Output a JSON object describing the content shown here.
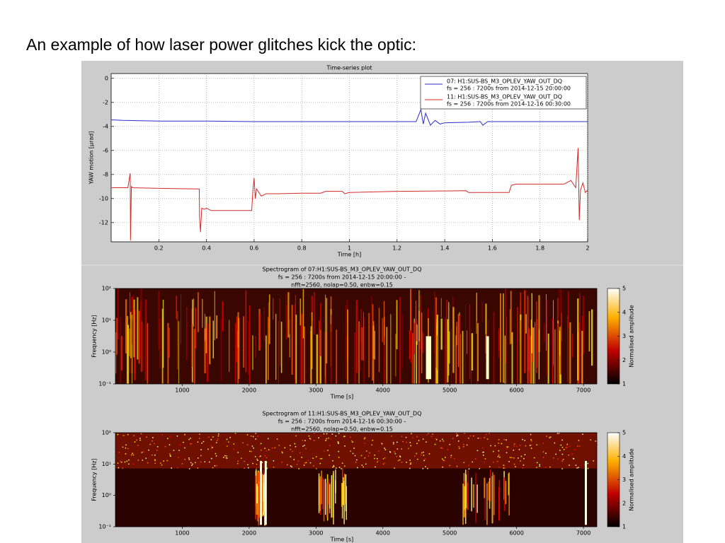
{
  "slide_title": "An example of how laser power glitches kick the optic:",
  "chart_data": [
    {
      "type": "line",
      "title": "Time-series plot",
      "xlabel": "Time [h]",
      "ylabel": "YAW motion [µrad]",
      "xlim": [
        0,
        2
      ],
      "xticks": [
        0.2,
        0.4,
        0.6,
        0.8,
        1,
        1.2,
        1.4,
        1.6,
        1.8,
        2
      ],
      "ylim": [
        -13.6,
        0.4
      ],
      "yticks": [
        0,
        -2,
        -4,
        -6,
        -8,
        -10,
        -12
      ],
      "grid": true,
      "legend": "upper right",
      "series": [
        {
          "name": "07: H1:SUS-BS_M3_OPLEV_YAW_OUT_DQ",
          "legend_note": "fs = 256 : 7200s from 2014-12-15 20:00:00",
          "color": "#2b2bc8",
          "x": [
            0,
            0.05,
            0.2,
            0.4,
            0.6,
            0.8,
            1.0,
            1.2,
            1.28,
            1.3,
            1.31,
            1.32,
            1.34,
            1.36,
            1.38,
            1.4,
            1.5,
            1.55,
            1.56,
            1.58,
            1.6,
            1.8,
            2.0
          ],
          "values": [
            -3.45,
            -3.5,
            -3.55,
            -3.55,
            -3.6,
            -3.6,
            -3.6,
            -3.6,
            -3.6,
            -2.6,
            -3.8,
            -2.9,
            -3.9,
            -3.5,
            -3.8,
            -3.7,
            -3.65,
            -3.6,
            -3.9,
            -3.6,
            -3.6,
            -3.6,
            -3.6
          ]
        },
        {
          "name": "11: H1:SUS-BS_M3_OPLEV_YAW_OUT_DQ",
          "legend_note": "fs = 256 : 7200s from 2014-12-16 00:30:00",
          "color": "#d42a2a",
          "x": [
            0,
            0.07,
            0.08,
            0.081,
            0.085,
            0.09,
            0.2,
            0.37,
            0.371,
            0.375,
            0.38,
            0.39,
            0.4,
            0.42,
            0.5,
            0.59,
            0.595,
            0.6,
            0.605,
            0.61,
            0.63,
            0.65,
            0.7,
            0.8,
            0.88,
            0.9,
            0.97,
            0.98,
            1.0,
            1.2,
            1.49,
            1.5,
            1.67,
            1.68,
            1.7,
            1.78,
            1.9,
            1.93,
            1.95,
            1.96,
            1.965,
            1.97,
            1.98,
            1.99,
            2.0
          ],
          "values": [
            -9.1,
            -9.1,
            -7.9,
            -13.5,
            -9.0,
            -9.1,
            -9.15,
            -9.2,
            -11.5,
            -12.8,
            -10.8,
            -10.9,
            -10.8,
            -11.0,
            -11.0,
            -11.0,
            -9.3,
            -8.3,
            -10.0,
            -9.2,
            -9.8,
            -9.6,
            -9.6,
            -9.55,
            -9.55,
            -9.4,
            -9.4,
            -9.6,
            -9.5,
            -9.4,
            -9.35,
            -9.5,
            -9.5,
            -8.9,
            -8.8,
            -8.8,
            -8.8,
            -8.5,
            -9.1,
            -5.8,
            -11.8,
            -9.3,
            -8.7,
            -9.5,
            -9.3
          ]
        }
      ]
    },
    {
      "type": "spectrogram",
      "title_lines": [
        "Spectrogram of 07:H1:SUS-BS_M3_OPLEV_YAW_OUT_DQ",
        "fs = 256 : 7200s from 2014-12-15 20:00:00 -",
        "nfft=2560, nolap=0.50, enbw=0.15"
      ],
      "xlabel": "Time [s]",
      "ylabel": "Frequency [Hz]",
      "xlim": [
        0,
        7200
      ],
      "xticks": [
        1000,
        2000,
        3000,
        4000,
        5000,
        6000,
        7000
      ],
      "ylim": [
        0.1,
        100
      ],
      "log_y": true,
      "yticks": [
        {
          "value": 100,
          "label": "10²"
        },
        {
          "value": 10,
          "label": "10¹"
        },
        {
          "value": 1,
          "label": "10⁰"
        },
        {
          "value": 0.1,
          "label": "10⁻¹"
        }
      ],
      "colorbar": {
        "label": "Normalised amplitude",
        "lim": [
          1,
          5
        ],
        "ticks": [
          1,
          2,
          3,
          4,
          5
        ]
      }
    },
    {
      "type": "spectrogram",
      "title_lines": [
        "Spectrogram of 11:H1:SUS-BS_M3_OPLEV_YAW_OUT_DQ",
        "fs = 256 : 7200s from 2014-12-16 00:30:00 -",
        "nfft=2560, nolap=0.50, enbw=0.15"
      ],
      "xlabel": "Time [s]",
      "ylabel": "Frequency [Hz]",
      "xlim": [
        0,
        7200
      ],
      "xticks": [
        1000,
        2000,
        3000,
        4000,
        5000,
        6000,
        7000
      ],
      "ylim": [
        0.1,
        100
      ],
      "log_y": true,
      "yticks": [
        {
          "value": 100,
          "label": "10²"
        },
        {
          "value": 10,
          "label": "10¹"
        },
        {
          "value": 1,
          "label": "10⁰"
        },
        {
          "value": 0.1,
          "label": "10⁻¹"
        }
      ],
      "colorbar": {
        "label": "Normalised amplitude",
        "lim": [
          1,
          5
        ],
        "ticks": [
          1,
          2,
          3,
          4,
          5
        ]
      }
    }
  ]
}
